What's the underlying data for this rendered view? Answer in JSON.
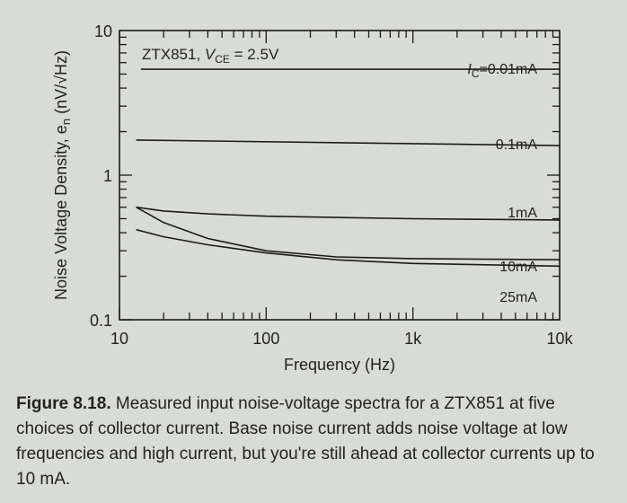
{
  "chart_data": {
    "type": "line",
    "title": "ZTX851, V_CE = 2.5V",
    "title_parts": {
      "device": "ZTX851, ",
      "v": "V",
      "sub": "CE",
      "rest": " = 2.5V"
    },
    "xlabel": "Frequency (Hz)",
    "ylabel": "Noise Voltage Density, e",
    "ylabel_sub": "n",
    "ylabel_units": " (nV/√Hz)",
    "x_scale": "log",
    "y_scale": "log",
    "xlim": [
      10,
      10000
    ],
    "ylim": [
      0.1,
      10
    ],
    "x_ticks": [
      {
        "v": 10,
        "label": "10"
      },
      {
        "v": 100,
        "label": "100"
      },
      {
        "v": 1000,
        "label": "1k"
      },
      {
        "v": 10000,
        "label": "10k"
      }
    ],
    "y_ticks": [
      {
        "v": 0.1,
        "label": "0.1"
      },
      {
        "v": 1,
        "label": "1"
      },
      {
        "v": 10,
        "label": "10"
      }
    ],
    "grid": false,
    "series": [
      {
        "name": "I_C = 0.01mA",
        "label_prefix": "I",
        "label_sub": "C",
        "label_rest": "=0.01mA",
        "x": [
          10000
        ],
        "y": [
          5.4
        ]
      },
      {
        "name": "0.1mA",
        "label": "0.1mA",
        "x": [
          13,
          10000
        ],
        "y": [
          1.75,
          1.6
        ]
      },
      {
        "name": "1mA",
        "label": "1mA",
        "x": [
          13,
          20,
          40,
          100,
          1000,
          10000
        ],
        "y": [
          0.6,
          0.565,
          0.54,
          0.52,
          0.5,
          0.49
        ]
      },
      {
        "name": "10mA",
        "label": "10mA",
        "x": [
          13,
          20,
          40,
          100,
          300,
          1000,
          10000
        ],
        "y": [
          0.6,
          0.47,
          0.365,
          0.3,
          0.272,
          0.265,
          0.26
        ]
      },
      {
        "name": "25mA",
        "label": "25mA",
        "x": [
          13,
          20,
          40,
          100,
          300,
          1000,
          10000
        ],
        "y": [
          0.42,
          0.375,
          0.33,
          0.29,
          0.26,
          0.245,
          0.235
        ]
      }
    ]
  },
  "caption": {
    "label": "Figure 8.18.",
    "text": " Measured input noise-voltage spectra for a ZTX851 at five choices of collector current. Base noise current adds noise voltage at low frequencies and high current, but you're still ahead at collector currents up to 10 mA."
  }
}
